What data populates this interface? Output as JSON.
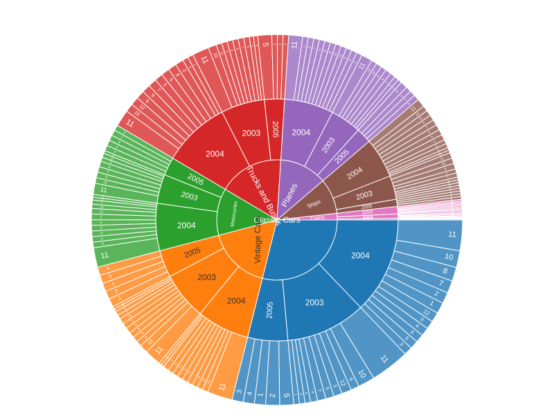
{
  "chart_data": {
    "type": "sunburst",
    "levels": [
      "productline",
      "year",
      "month"
    ],
    "start_angle_deg": 0,
    "direction": "clockwise",
    "colors": {
      "Classic Cars": "#1f77b4",
      "Vintage Cars": "#ff7f0e",
      "Motorcycles": "#2ca02c",
      "Trucks and Buses": "#d62728",
      "Planes": "#9467bd",
      "Ships": "#8c564b",
      "Trains": "#e377c2",
      "Other": "#e377c2"
    },
    "data": [
      {
        "name": "Classic Cars",
        "children": [
          {
            "name": "2004",
            "children": [
              {
                "name": "11",
                "value": 11
              },
              {
                "name": "10",
                "value": 6
              },
              {
                "name": "8",
                "value": 5
              },
              {
                "name": "7",
                "value": 4.5
              },
              {
                "name": "2",
                "value": 4
              },
              {
                "name": "1",
                "value": 4
              },
              {
                "name": "12",
                "value": 3.5
              },
              {
                "name": "9",
                "value": 3
              },
              {
                "name": "4",
                "value": 3
              },
              {
                "name": "6",
                "value": 3
              },
              {
                "name": "5",
                "value": 3
              },
              {
                "name": "3",
                "value": 3
              }
            ]
          },
          {
            "name": "2003",
            "children": [
              {
                "name": "11",
                "value": 14
              },
              {
                "name": "10",
                "value": 6
              },
              {
                "name": "9",
                "value": 3
              },
              {
                "name": "12",
                "value": 3.5
              },
              {
                "name": "3",
                "value": 3
              },
              {
                "name": "5",
                "value": 3
              },
              {
                "name": "7",
                "value": 3
              },
              {
                "name": "4",
                "value": 2.5
              },
              {
                "name": "6",
                "value": 2
              },
              {
                "name": "8",
                "value": 2
              },
              {
                "name": "1",
                "value": 2
              }
            ]
          },
          {
            "name": "2005",
            "children": [
              {
                "name": "5",
                "value": 5
              },
              {
                "name": "2",
                "value": 5
              },
              {
                "name": "1",
                "value": 4
              },
              {
                "name": "4",
                "value": 4
              },
              {
                "name": "3",
                "value": 4
              }
            ]
          }
        ]
      },
      {
        "name": "Vintage Cars",
        "children": [
          {
            "name": "2004",
            "children": [
              {
                "name": "11",
                "value": 9
              },
              {
                "name": "10",
                "value": 2
              },
              {
                "name": "12",
                "value": 2
              },
              {
                "name": "8",
                "value": 2
              },
              {
                "name": "1",
                "value": 2
              },
              {
                "name": "9",
                "value": 2
              },
              {
                "name": "3",
                "value": 2
              },
              {
                "name": "4",
                "value": 2
              },
              {
                "name": "6",
                "value": 2
              },
              {
                "name": "7",
                "value": 2
              },
              {
                "name": "5",
                "value": 1
              },
              {
                "name": "2",
                "value": 1
              }
            ]
          },
          {
            "name": "2003",
            "children": [
              {
                "name": "11",
                "value": 6
              },
              {
                "name": "10",
                "value": 3
              },
              {
                "name": "9",
                "value": 2
              },
              {
                "name": "8",
                "value": 2
              },
              {
                "name": "5",
                "value": 2
              },
              {
                "name": "3",
                "value": 2
              },
              {
                "name": "1",
                "value": 2
              },
              {
                "name": "12",
                "value": 2
              },
              {
                "name": "7",
                "value": 1.5
              },
              {
                "name": "6",
                "value": 1.5
              },
              {
                "name": "4",
                "value": 1
              },
              {
                "name": "2",
                "value": 1
              }
            ]
          },
          {
            "name": "2005",
            "children": [
              {
                "name": "2",
                "value": 3
              },
              {
                "name": "3",
                "value": 3
              },
              {
                "name": "1",
                "value": 3
              },
              {
                "name": "5",
                "value": 3
              },
              {
                "name": "4",
                "value": 3
              }
            ]
          }
        ]
      },
      {
        "name": "Motorcycles",
        "children": [
          {
            "name": "2004",
            "children": [
              {
                "name": "11",
                "value": 7
              },
              {
                "name": "8",
                "value": 2
              },
              {
                "name": "2",
                "value": 2
              },
              {
                "name": "6",
                "value": 2
              },
              {
                "name": "5",
                "value": 2
              },
              {
                "name": "9",
                "value": 2
              },
              {
                "name": "1",
                "value": 2
              },
              {
                "name": "12",
                "value": 2
              },
              {
                "name": "10",
                "value": 1.5
              },
              {
                "name": "7",
                "value": 1.5
              },
              {
                "name": "4",
                "value": 1
              },
              {
                "name": "3",
                "value": 1
              }
            ]
          },
          {
            "name": "2003",
            "children": [
              {
                "name": "11",
                "value": 4
              },
              {
                "name": "10",
                "value": 2
              },
              {
                "name": "8",
                "value": 2
              },
              {
                "name": "7",
                "value": 2
              },
              {
                "name": "6",
                "value": 2
              },
              {
                "name": "9",
                "value": 1.5
              },
              {
                "name": "12",
                "value": 1.5
              },
              {
                "name": "4",
                "value": 1
              }
            ]
          },
          {
            "name": "2005",
            "children": [
              {
                "name": "4",
                "value": 2
              },
              {
                "name": "2",
                "value": 2
              },
              {
                "name": "3",
                "value": 2
              },
              {
                "name": "1",
                "value": 2
              },
              {
                "name": "5",
                "value": 2
              }
            ]
          }
        ]
      },
      {
        "name": "Trucks and Buses",
        "children": [
          {
            "name": "2004",
            "children": [
              {
                "name": "11",
                "value": 6
              },
              {
                "name": "10",
                "value": 3
              },
              {
                "name": "12",
                "value": 3
              },
              {
                "name": "6",
                "value": 3
              },
              {
                "name": "9",
                "value": 3
              },
              {
                "name": "7",
                "value": 3
              },
              {
                "name": "3",
                "value": 3
              },
              {
                "name": "5",
                "value": 3
              },
              {
                "name": "8",
                "value": 3
              },
              {
                "name": "2",
                "value": 3
              },
              {
                "name": "4",
                "value": 2
              },
              {
                "name": "1",
                "value": 2
              }
            ]
          },
          {
            "name": "2003",
            "children": [
              {
                "name": "11",
                "value": 6
              },
              {
                "name": "10",
                "value": 3
              },
              {
                "name": "12",
                "value": 2
              },
              {
                "name": "9",
                "value": 2
              },
              {
                "name": "1",
                "value": 2
              },
              {
                "name": "4",
                "value": 2
              },
              {
                "name": "7",
                "value": 2
              },
              {
                "name": "3",
                "value": 2
              },
              {
                "name": "6",
                "value": 1.5
              },
              {
                "name": "5",
                "value": 1.5
              }
            ]
          },
          {
            "name": "2005",
            "children": [
              {
                "name": "5",
                "value": 5
              },
              {
                "name": "2",
                "value": 2
              },
              {
                "name": "1",
                "value": 2
              },
              {
                "name": "3",
                "value": 2
              }
            ]
          }
        ]
      },
      {
        "name": "Planes",
        "children": [
          {
            "name": "2004",
            "children": [
              {
                "name": "11",
                "value": 5
              },
              {
                "name": "1",
                "value": 2
              },
              {
                "name": "2",
                "value": 2
              },
              {
                "name": "7",
                "value": 2
              },
              {
                "name": "5",
                "value": 2
              },
              {
                "name": "6",
                "value": 2
              },
              {
                "name": "8",
                "value": 2
              },
              {
                "name": "12",
                "value": 2
              },
              {
                "name": "10",
                "value": 2
              },
              {
                "name": "3",
                "value": 2
              },
              {
                "name": "9",
                "value": 2
              },
              {
                "name": "4",
                "value": 2
              }
            ]
          },
          {
            "name": "2003",
            "children": [
              {
                "name": "11",
                "value": 4
              },
              {
                "name": "12",
                "value": 2
              },
              {
                "name": "10",
                "value": 2
              },
              {
                "name": "9",
                "value": 2
              },
              {
                "name": "8",
                "value": 2
              },
              {
                "name": "7",
                "value": 2
              },
              {
                "name": "6",
                "value": 1.5
              },
              {
                "name": "4",
                "value": 1.5
              }
            ]
          },
          {
            "name": "2005",
            "children": [
              {
                "name": "3",
                "value": 2.5
              },
              {
                "name": "2",
                "value": 2
              },
              {
                "name": "1",
                "value": 2
              },
              {
                "name": "5",
                "value": 2
              }
            ]
          }
        ]
      },
      {
        "name": "Ships",
        "children": [
          {
            "name": "2004",
            "children": [
              {
                "name": "11",
                "value": 3
              },
              {
                "name": "10",
                "value": 2
              },
              {
                "name": "9",
                "value": 2
              },
              {
                "name": "8",
                "value": 2
              },
              {
                "name": "7",
                "value": 2
              },
              {
                "name": "6",
                "value": 2
              },
              {
                "name": "5",
                "value": 2
              },
              {
                "name": "4",
                "value": 2
              },
              {
                "name": "3",
                "value": 1.5
              },
              {
                "name": "2",
                "value": 1.5
              },
              {
                "name": "1",
                "value": 1
              },
              {
                "name": "12",
                "value": 1
              }
            ]
          },
          {
            "name": "2003",
            "children": [
              {
                "name": "11",
                "value": 2
              },
              {
                "name": "10",
                "value": 2
              },
              {
                "name": "9",
                "value": 2
              },
              {
                "name": "8",
                "value": 1.5
              },
              {
                "name": "7",
                "value": 1.5
              },
              {
                "name": "6",
                "value": 1
              },
              {
                "name": "5",
                "value": 1
              },
              {
                "name": "4",
                "value": 1
              },
              {
                "name": "3",
                "value": 1
              }
            ]
          },
          {
            "name": "2005",
            "children": [
              {
                "name": "2",
                "value": 1
              },
              {
                "name": "1",
                "value": 1
              },
              {
                "name": "3",
                "value": 1
              },
              {
                "name": "5",
                "value": 1
              }
            ]
          }
        ]
      },
      {
        "name": "Trains",
        "children": [
          {
            "name": "2004",
            "children": [
              {
                "name": "11",
                "value": 0.7
              },
              {
                "name": "10",
                "value": 0.5
              },
              {
                "name": "9",
                "value": 0.5
              },
              {
                "name": "8",
                "value": 0.5
              },
              {
                "name": "7",
                "value": 0.5
              },
              {
                "name": "6",
                "value": 0.5
              },
              {
                "name": "3",
                "value": 0.4
              },
              {
                "name": "1",
                "value": 0.4
              }
            ]
          },
          {
            "name": "2003",
            "children": [
              {
                "name": "11",
                "value": 0.6
              },
              {
                "name": "10",
                "value": 0.4
              },
              {
                "name": "12",
                "value": 0.4
              },
              {
                "name": "9",
                "value": 0.4
              },
              {
                "name": "5",
                "value": 0.3
              },
              {
                "name": "3",
                "value": 0.3
              }
            ]
          },
          {
            "name": "2005",
            "children": [
              {
                "name": "2",
                "value": 0.3
              },
              {
                "name": "1",
                "value": 0.3
              },
              {
                "name": "4",
                "value": 0.3
              }
            ]
          }
        ]
      }
    ]
  }
}
